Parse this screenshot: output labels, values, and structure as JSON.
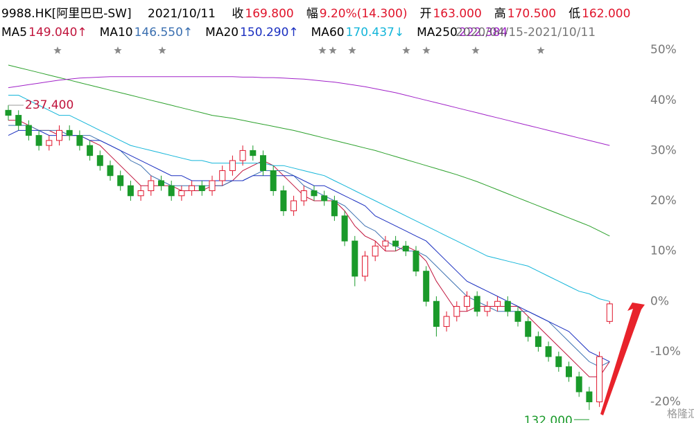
{
  "chart_data": {
    "type": "candlestick",
    "title": "9988.HK[阿里巴巴-SW]",
    "date": "2021/10/11",
    "stats": [
      {
        "label": "收",
        "value": "169.800"
      },
      {
        "label": "幅",
        "value": "9.20%(14.300)"
      },
      {
        "label": "开",
        "value": "163.000"
      },
      {
        "label": "高",
        "value": "170.500"
      },
      {
        "label": "低",
        "value": "162.000"
      }
    ],
    "range": "2020/04/15-2021/10/11",
    "max_label": "237.400",
    "min_label": "132.000",
    "watermark": "格隆汇",
    "up_color": "#e0142b",
    "down_color": "#1a9a2a",
    "ylim": [
      -24.2,
      51.4
    ],
    "yticks": [
      {
        "value": 50,
        "label": "50%"
      },
      {
        "value": 40,
        "label": "40%"
      },
      {
        "value": 30,
        "label": "30%"
      },
      {
        "value": 20,
        "label": "20%"
      },
      {
        "value": 10,
        "label": "10%"
      },
      {
        "value": 0,
        "label": "0%"
      },
      {
        "value": -10,
        "label": "-10%"
      },
      {
        "value": -20,
        "label": "-20%"
      }
    ],
    "grid": false,
    "open": [
      38,
      37,
      35,
      33,
      31,
      32,
      34,
      33,
      31,
      29,
      27,
      25,
      23,
      21,
      22,
      24,
      23,
      21,
      22,
      23,
      22,
      24,
      26,
      28,
      30,
      29,
      26,
      22,
      18,
      20,
      22,
      21,
      20,
      17,
      12,
      5,
      9,
      11,
      12,
      11,
      10,
      6,
      0,
      -5,
      -3,
      -1,
      1,
      -2,
      -1,
      0,
      -2,
      -4,
      -7,
      -9,
      -11,
      -13,
      -15,
      -18,
      -20,
      -4
    ],
    "close": [
      37,
      35,
      33,
      31,
      32,
      34,
      33,
      31,
      29,
      27,
      25,
      23,
      21,
      22,
      24,
      23,
      21,
      22,
      23,
      22,
      24,
      26,
      28,
      30,
      29,
      26,
      22,
      18,
      20,
      22,
      21,
      20,
      17,
      12,
      5,
      9,
      11,
      12,
      11,
      10,
      6,
      0,
      -5,
      -3,
      -1,
      1,
      -2,
      -1,
      0,
      -2,
      -4,
      -7,
      -9,
      -11,
      -13,
      -15,
      -18,
      -20,
      -11,
      -0.5
    ],
    "high": [
      39,
      38,
      36,
      34,
      33,
      35,
      35,
      34,
      32,
      30,
      28,
      26,
      24,
      23,
      25,
      25,
      24,
      23,
      24,
      24,
      25,
      27,
      29,
      31,
      31,
      30,
      27,
      23,
      21,
      23,
      23,
      22,
      21,
      18,
      13,
      10,
      12,
      13,
      13,
      12,
      11,
      7,
      1,
      -2,
      0,
      2,
      2,
      0,
      1,
      1,
      -1,
      -3,
      -6,
      -8,
      -10,
      -12,
      -14,
      -17,
      -10,
      0
    ],
    "low": [
      36,
      34,
      32,
      30,
      30,
      31,
      32,
      30,
      28,
      26,
      24,
      22,
      20,
      20,
      21,
      22,
      20,
      20,
      21,
      21,
      21,
      23,
      25,
      27,
      28,
      25,
      21,
      17,
      17,
      19,
      20,
      19,
      16,
      11,
      3,
      4,
      8,
      10,
      10,
      9,
      5,
      -1,
      -7,
      -6,
      -4,
      -2,
      -3,
      -3,
      -2,
      -3,
      -5,
      -8,
      -10,
      -12,
      -14,
      -16,
      -19,
      -21.6,
      -21,
      -4.5
    ],
    "series": [
      {
        "name": "MA5",
        "readout": "149.040↑",
        "color": "#c0143c",
        "values": [
          36,
          36,
          35,
          34,
          34,
          33,
          33,
          33,
          32,
          31,
          29,
          27,
          25,
          23,
          23,
          23,
          23,
          22,
          22,
          22,
          23,
          23,
          24,
          26,
          27,
          28,
          27,
          25,
          23,
          21,
          20,
          20,
          20,
          18,
          15,
          13,
          12,
          10,
          10,
          11,
          10,
          8,
          4,
          1,
          -2,
          -2,
          -1,
          -1,
          -1,
          -1,
          -1,
          -3,
          -5,
          -7,
          -9,
          -11,
          -13,
          -15,
          -15,
          -12
        ]
      },
      {
        "name": "MA10",
        "readout": "146.550↑",
        "color": "#3a6fb0",
        "values": [
          35,
          35,
          35,
          34,
          34,
          34,
          33,
          33,
          33,
          32,
          31,
          30,
          28,
          27,
          25,
          24,
          23,
          23,
          23,
          23,
          23,
          23,
          24,
          24,
          25,
          26,
          26,
          26,
          25,
          23,
          22,
          21,
          20,
          19,
          17,
          15,
          14,
          12,
          11,
          10,
          10,
          9,
          7,
          5,
          3,
          1,
          0,
          -1,
          -2,
          -2,
          -2,
          -2,
          -3,
          -4,
          -6,
          -8,
          -10,
          -12,
          -13,
          -12
        ]
      },
      {
        "name": "MA20",
        "readout": "150.290↑",
        "color": "#1a2fc0",
        "values": [
          33,
          34,
          34,
          34,
          33,
          33,
          33,
          33,
          32,
          32,
          31,
          30,
          29,
          28,
          27,
          26,
          25,
          25,
          24,
          24,
          24,
          24,
          24,
          24,
          25,
          25,
          25,
          25,
          25,
          24,
          23,
          23,
          22,
          21,
          20,
          19,
          17,
          16,
          15,
          14,
          13,
          12,
          10,
          8,
          6,
          4,
          3,
          2,
          1,
          0,
          -1,
          -2,
          -3,
          -4,
          -5,
          -6,
          -8,
          -10,
          -11,
          -12
        ]
      },
      {
        "name": "MA60",
        "readout": "170.437↓",
        "color": "#13b5d9",
        "values": [
          41,
          41,
          40,
          39,
          38,
          37,
          37,
          36,
          35,
          34,
          33,
          32,
          31,
          30.5,
          30,
          29.5,
          29,
          28.5,
          28,
          28,
          27.5,
          27.5,
          27.5,
          27.5,
          27.5,
          27.5,
          27,
          27,
          26.5,
          26,
          25.5,
          25,
          24,
          23,
          22,
          21,
          20,
          19,
          18,
          17,
          16,
          15,
          14,
          13,
          12,
          11,
          10,
          9,
          8.5,
          8,
          7.5,
          7,
          6,
          5,
          4,
          3,
          2,
          1.5,
          0.5,
          0
        ]
      },
      {
        "color": "#2aa02a",
        "values": [
          47,
          46.5,
          46,
          45.5,
          45,
          44.5,
          44,
          43.5,
          43,
          42.5,
          42,
          41.5,
          41,
          40.5,
          40,
          39.5,
          39,
          38.5,
          38,
          37.5,
          37,
          36.7,
          36.4,
          36,
          35.6,
          35.2,
          34.8,
          34.4,
          34,
          33.5,
          33,
          32.5,
          32,
          31.5,
          31,
          30.5,
          30,
          29.4,
          28.8,
          28.2,
          27.6,
          27,
          26.4,
          25.8,
          25.2,
          24.5,
          23.8,
          23,
          22.2,
          21.4,
          20.6,
          19.8,
          19,
          18.2,
          17.4,
          16.6,
          15.8,
          15,
          14,
          13
        ]
      },
      {
        "name": "MA250",
        "readout": "222.384",
        "color": "#a020c8",
        "values": [
          42.5,
          42.8,
          43.1,
          43.4,
          43.7,
          44,
          44.2,
          44.4,
          44.5,
          44.6,
          44.7,
          44.7,
          44.7,
          44.7,
          44.7,
          44.7,
          44.7,
          44.7,
          44.7,
          44.7,
          44.7,
          44.7,
          44.7,
          44.6,
          44.6,
          44.5,
          44.5,
          44.4,
          44.3,
          44.2,
          44,
          43.8,
          43.6,
          43.3,
          43,
          42.7,
          42.3,
          41.9,
          41.5,
          41,
          40.5,
          40,
          39.5,
          39,
          38.5,
          38,
          37.5,
          37,
          36.5,
          36,
          35.5,
          35,
          34.5,
          34,
          33.5,
          33,
          32.5,
          32,
          31.5,
          31
        ]
      }
    ]
  }
}
